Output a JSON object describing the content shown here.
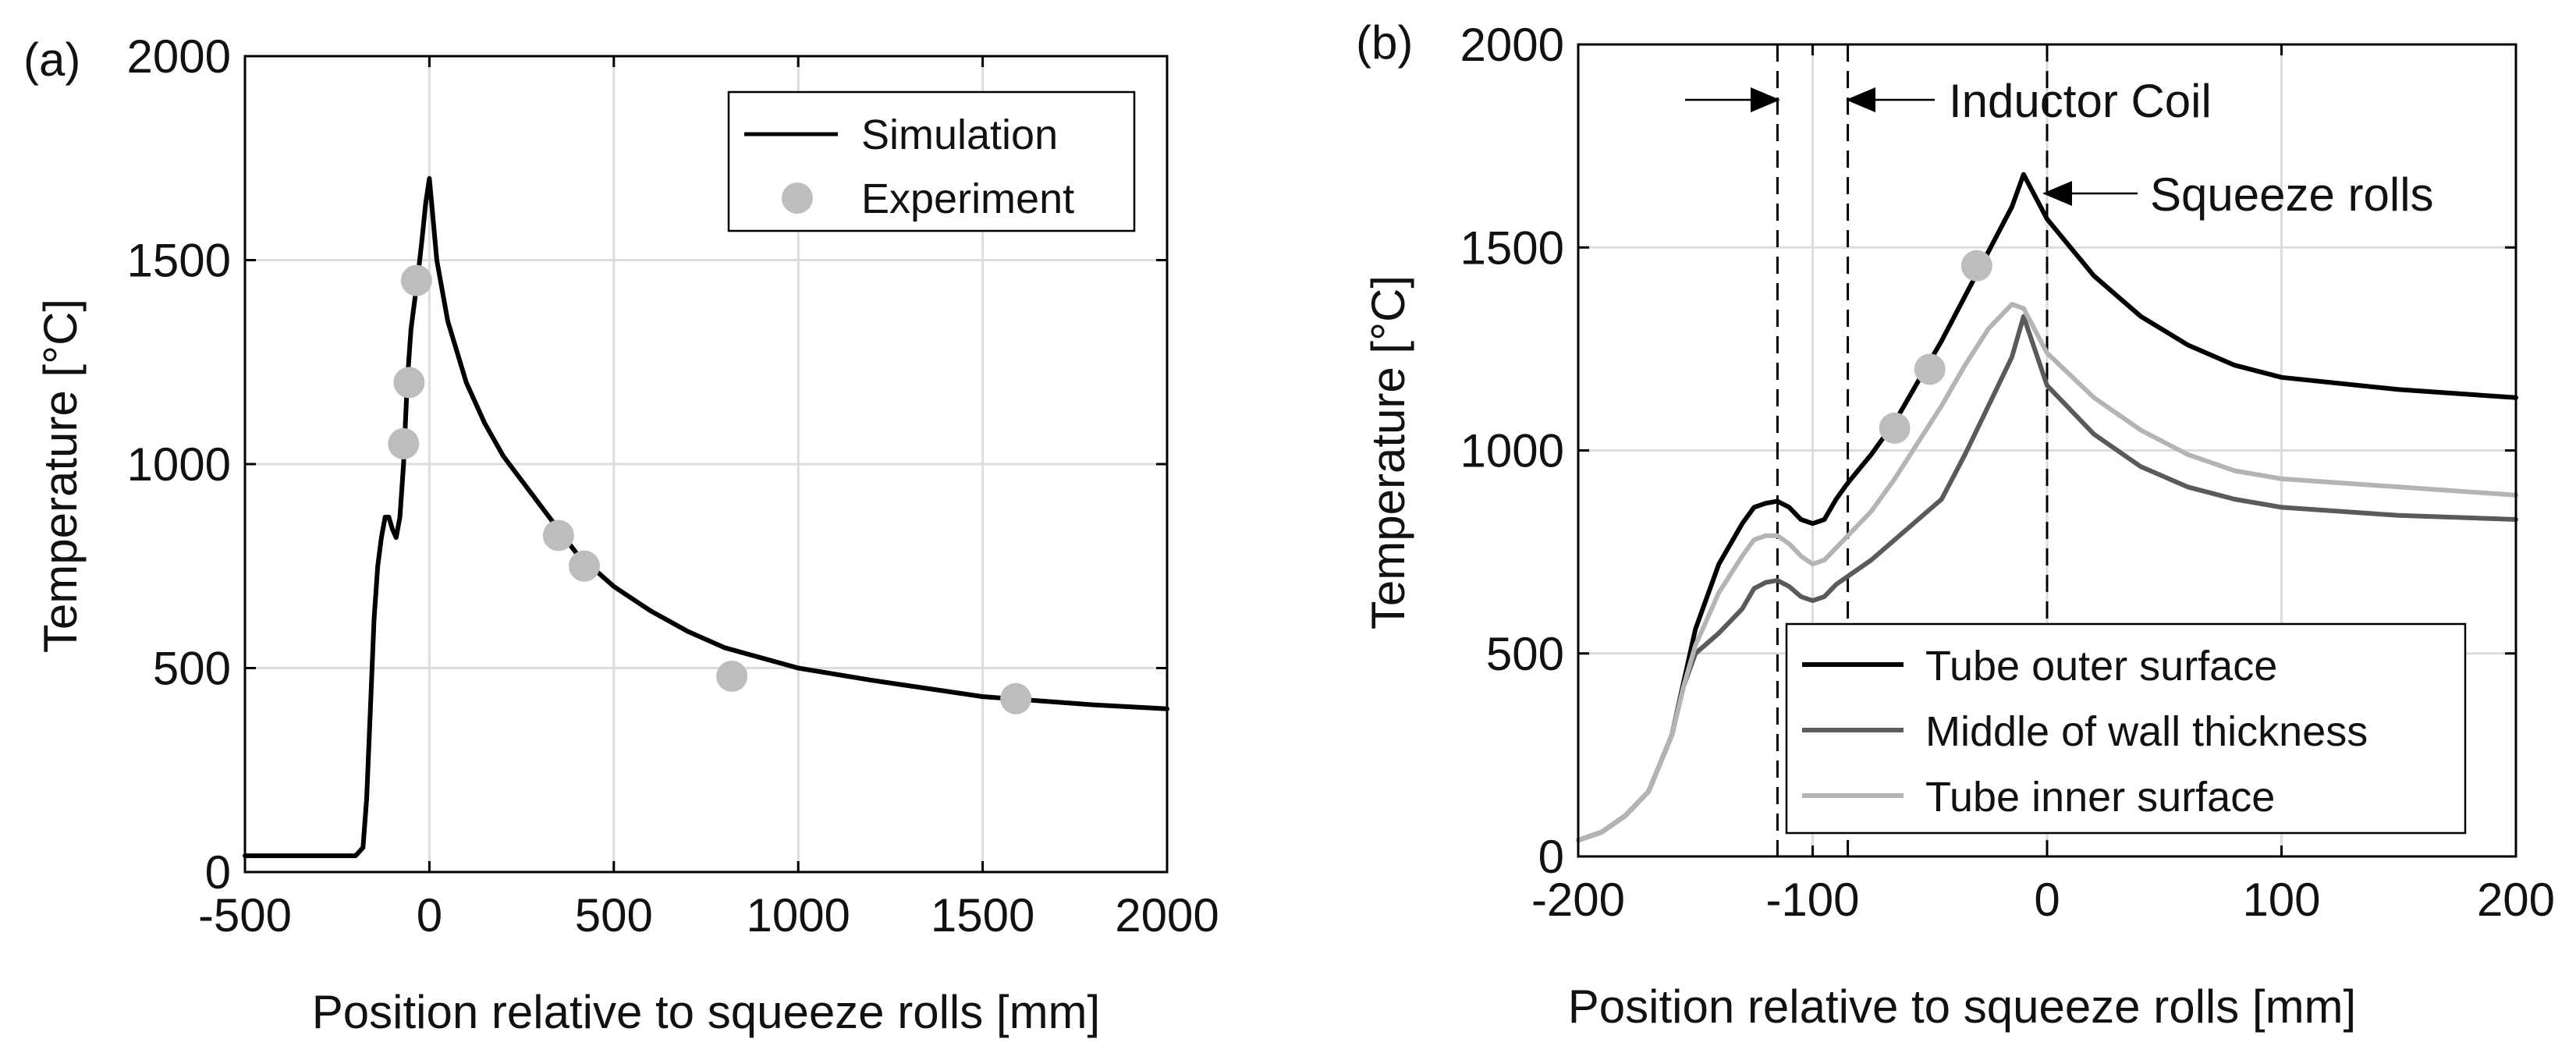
{
  "chart_data": [
    {
      "type": "line",
      "panel_label": "(a)",
      "title": "",
      "xlabel": "Position relative to squeeze rolls [mm]",
      "ylabel": "Temperature [°C]",
      "xlim": [
        -500,
        2000
      ],
      "ylim": [
        0,
        2000
      ],
      "xticks": [
        -500,
        0,
        500,
        1000,
        1500,
        2000
      ],
      "yticks": [
        0,
        500,
        1000,
        1500,
        2000
      ],
      "xtick_labels": [
        "-500",
        "0",
        "500",
        "1000",
        "1500",
        "2000"
      ],
      "ytick_labels": [
        "0",
        "500",
        "1000",
        "1500",
        "2000"
      ],
      "grid": true,
      "legend_position": "top-right",
      "series": [
        {
          "name": "Simulation",
          "kind": "line",
          "color": "#000000",
          "x": [
            -500,
            -300,
            -200,
            -180,
            -170,
            -160,
            -150,
            -140,
            -130,
            -120,
            -110,
            -100,
            -90,
            -80,
            -70,
            -60,
            -50,
            -40,
            -30,
            -20,
            -10,
            0,
            20,
            50,
            100,
            150,
            200,
            250,
            300,
            400,
            500,
            600,
            700,
            800,
            1000,
            1200,
            1500,
            1800,
            2000
          ],
          "y": [
            40,
            40,
            40,
            60,
            180,
            400,
            620,
            750,
            820,
            870,
            870,
            840,
            820,
            870,
            1000,
            1200,
            1330,
            1400,
            1470,
            1550,
            1640,
            1700,
            1500,
            1350,
            1200,
            1100,
            1020,
            960,
            900,
            780,
            700,
            640,
            590,
            550,
            500,
            470,
            430,
            410,
            400
          ]
        },
        {
          "name": "Experiment",
          "kind": "scatter",
          "color": "#bdbdbd",
          "x": [
            -70,
            -55,
            -35,
            350,
            420,
            820,
            1590
          ],
          "y": [
            1050,
            1200,
            1450,
            825,
            750,
            480,
            425
          ]
        }
      ]
    },
    {
      "type": "line",
      "panel_label": "(b)",
      "title": "",
      "xlabel": "Position relative to squeeze rolls [mm]",
      "ylabel": "Temperature [°C]",
      "xlim": [
        -200,
        200
      ],
      "ylim": [
        0,
        2000
      ],
      "xticks": [
        -200,
        -100,
        0,
        100,
        200
      ],
      "yticks": [
        0,
        500,
        1000,
        1500,
        2000
      ],
      "xtick_labels": [
        "-200",
        "-100",
        "0",
        "100",
        "200"
      ],
      "ytick_labels": [
        "0",
        "500",
        "1000",
        "1500",
        "2000"
      ],
      "grid": true,
      "legend_position": "bottom-center",
      "vertical_markers": [
        {
          "x": -115,
          "style": "dashed"
        },
        {
          "x": -85,
          "style": "dashed"
        },
        {
          "x": 0,
          "style": "dashed"
        }
      ],
      "annotations": [
        {
          "text": "Inductor Coil",
          "between": [
            -115,
            -85
          ],
          "y": 1870
        },
        {
          "text": "Squeeze rolls",
          "at_x": 0,
          "y": 1640
        }
      ],
      "series": [
        {
          "name": "Tube outer surface",
          "kind": "line",
          "color": "#000000",
          "x": [
            -200,
            -190,
            -180,
            -170,
            -160,
            -155,
            -150,
            -140,
            -130,
            -125,
            -120,
            -115,
            -110,
            -105,
            -100,
            -95,
            -90,
            -85,
            -75,
            -65,
            -55,
            -45,
            -35,
            -25,
            -15,
            -10,
            0,
            20,
            40,
            60,
            80,
            100,
            150,
            200
          ],
          "y": [
            40,
            60,
            100,
            160,
            300,
            430,
            560,
            720,
            820,
            860,
            870,
            875,
            860,
            830,
            820,
            830,
            880,
            920,
            990,
            1070,
            1170,
            1270,
            1380,
            1490,
            1600,
            1680,
            1570,
            1430,
            1330,
            1260,
            1210,
            1180,
            1150,
            1130
          ]
        },
        {
          "name": "Middle of wall thickness",
          "kind": "line",
          "color": "#5a5a5a",
          "x": [
            -200,
            -190,
            -180,
            -170,
            -160,
            -155,
            -150,
            -140,
            -130,
            -125,
            -120,
            -115,
            -110,
            -105,
            -100,
            -95,
            -90,
            -85,
            -75,
            -65,
            -55,
            -45,
            -35,
            -25,
            -15,
            -10,
            0,
            20,
            40,
            60,
            80,
            100,
            150,
            200
          ],
          "y": [
            40,
            60,
            100,
            160,
            300,
            420,
            500,
            550,
            610,
            660,
            675,
            680,
            665,
            640,
            630,
            640,
            670,
            690,
            730,
            780,
            830,
            880,
            990,
            1110,
            1230,
            1330,
            1160,
            1040,
            960,
            910,
            880,
            860,
            840,
            830
          ]
        },
        {
          "name": "Tube inner surface",
          "kind": "line",
          "color": "#b4b4b4",
          "x": [
            -200,
            -190,
            -180,
            -170,
            -160,
            -155,
            -150,
            -140,
            -130,
            -125,
            -120,
            -115,
            -110,
            -105,
            -100,
            -95,
            -90,
            -85,
            -75,
            -65,
            -55,
            -45,
            -35,
            -25,
            -15,
            -10,
            0,
            20,
            40,
            60,
            80,
            100,
            150,
            200
          ],
          "y": [
            40,
            60,
            100,
            160,
            300,
            420,
            520,
            650,
            740,
            780,
            790,
            790,
            770,
            740,
            720,
            730,
            760,
            790,
            850,
            930,
            1020,
            1110,
            1210,
            1300,
            1360,
            1350,
            1240,
            1130,
            1050,
            990,
            950,
            930,
            910,
            890
          ]
        },
        {
          "name": "Experiment",
          "kind": "scatter",
          "color": "#bdbdbd",
          "in_legend": false,
          "x": [
            -65,
            -50,
            -30
          ],
          "y": [
            1055,
            1200,
            1455
          ]
        }
      ]
    }
  ]
}
